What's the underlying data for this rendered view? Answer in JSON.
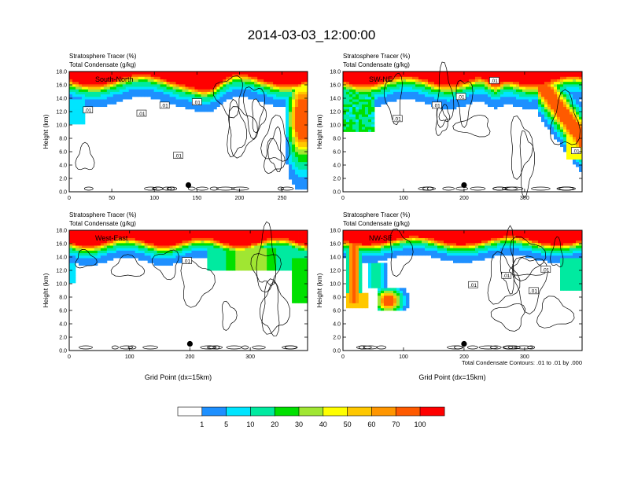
{
  "figure_title": "2014-03-03_12:00:00",
  "contour_note": "Total Condensate Contours: .01 to .01 by .000",
  "colorbar": {
    "levels": [
      "1",
      "5",
      "10",
      "20",
      "30",
      "40",
      "50",
      "60",
      "70",
      "100"
    ],
    "colors": [
      "#ffffff",
      "#1e90ff",
      "#00e5ff",
      "#00eaa0",
      "#00e000",
      "#a0e632",
      "#ffff00",
      "#ffc800",
      "#ff9600",
      "#ff5a00",
      "#ff0000"
    ]
  },
  "chart_data": [
    {
      "type": "heatmap",
      "panel_label": "South-North",
      "header_line1": "Stratosphere Tracer   (%)",
      "header_line2": "Total Condensate   (g/kg)",
      "ylabel": "Height (km)",
      "xlabel": "",
      "xlim": [
        0,
        280
      ],
      "ylim": [
        0,
        18
      ],
      "xticks": [
        0,
        50,
        100,
        150,
        200,
        250
      ],
      "yticks": [
        0.0,
        2.0,
        4.0,
        6.0,
        8.0,
        10.0,
        12.0,
        14.0,
        16.0,
        18.0
      ],
      "contour_labels": [
        {
          "x": 22,
          "y": 12.2,
          "text": ".01"
        },
        {
          "x": 85,
          "y": 11.7,
          "text": ".01"
        },
        {
          "x": 112,
          "y": 12.9,
          "text": ".01"
        },
        {
          "x": 150,
          "y": 13.4,
          "text": ".01"
        },
        {
          "x": 128,
          "y": 5.4,
          "text": ".01"
        }
      ],
      "marker": {
        "x": 140,
        "y": 1.0
      }
    },
    {
      "type": "heatmap",
      "panel_label": "SW-NE",
      "header_line1": "Stratosphere Tracer   (%)",
      "header_line2": "Total Condensate   (g/kg)",
      "ylabel": "Height (km)",
      "xlabel": "",
      "xlim": [
        0,
        395
      ],
      "ylim": [
        0,
        18
      ],
      "xticks": [
        0,
        100,
        200,
        300
      ],
      "yticks": [
        0.0,
        2.0,
        4.0,
        6.0,
        8.0,
        10.0,
        12.0,
        14.0,
        16.0,
        18.0
      ],
      "contour_labels": [
        {
          "x": 90,
          "y": 10.9,
          "text": ".01"
        },
        {
          "x": 155,
          "y": 12.9,
          "text": ".01"
        },
        {
          "x": 195,
          "y": 14.2,
          "text": ".01"
        },
        {
          "x": 250,
          "y": 16.6,
          "text": ".01"
        },
        {
          "x": 385,
          "y": 6.1,
          "text": ".01"
        }
      ],
      "marker": {
        "x": 200,
        "y": 1.0
      }
    },
    {
      "type": "heatmap",
      "panel_label": "West-East",
      "header_line1": "Stratosphere Tracer   (%)",
      "header_line2": "Total Condensate   (g/kg)",
      "ylabel": "Height (km)",
      "xlabel": "Grid Point (dx=15km)",
      "xlim": [
        0,
        395
      ],
      "ylim": [
        0,
        18
      ],
      "xticks": [
        0,
        100,
        200,
        300
      ],
      "yticks": [
        0.0,
        2.0,
        4.0,
        6.0,
        8.0,
        10.0,
        12.0,
        14.0,
        16.0,
        18.0
      ],
      "contour_labels": [
        {
          "x": 195,
          "y": 13.4,
          "text": ".01"
        }
      ],
      "marker": {
        "x": 200,
        "y": 1.0
      }
    },
    {
      "type": "heatmap",
      "panel_label": "NW-SE",
      "header_line1": "Stratosphere Tracer   (%)",
      "header_line2": "Total Condensate   (g/kg)",
      "ylabel": "Height (km)",
      "xlabel": "Grid Point (dx=15km)",
      "xlim": [
        0,
        395
      ],
      "ylim": [
        0,
        18
      ],
      "xticks": [
        0,
        100,
        200,
        300
      ],
      "yticks": [
        0.0,
        2.0,
        4.0,
        6.0,
        8.0,
        10.0,
        12.0,
        14.0,
        16.0,
        18.0
      ],
      "contour_labels": [
        {
          "x": 215,
          "y": 9.8,
          "text": ".01"
        },
        {
          "x": 270,
          "y": 11.2,
          "text": ".01"
        },
        {
          "x": 315,
          "y": 8.9,
          "text": ".01"
        },
        {
          "x": 335,
          "y": 12.1,
          "text": ".01"
        }
      ],
      "marker": {
        "x": 200,
        "y": 1.0
      }
    }
  ]
}
